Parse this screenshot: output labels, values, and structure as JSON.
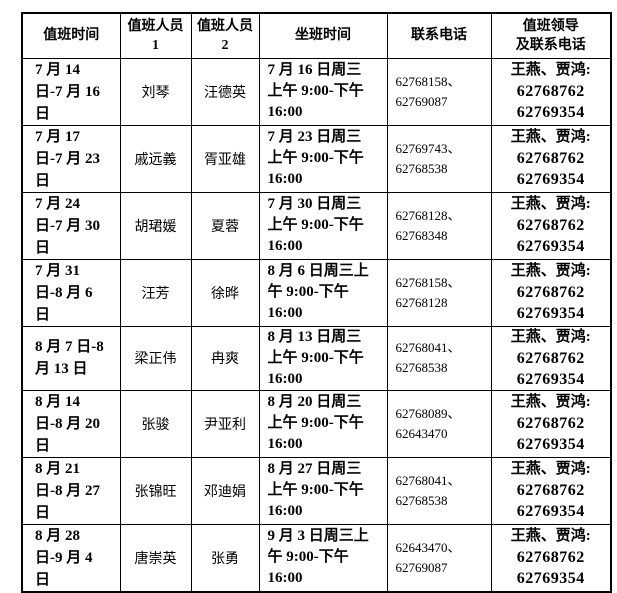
{
  "colors": {
    "text": "#000000",
    "border": "#000000",
    "background": "#ffffff"
  },
  "table": {
    "headers": {
      "duty_time": "值班时间",
      "person1_line1": "值班人员",
      "person1_line2": "1",
      "person2_line1": "值班人员",
      "person2_line2": "2",
      "sitting_time": "坐班时间",
      "contact_phone": "联系电话",
      "leader_line1": "值班领导",
      "leader_line2": "及联系电话"
    },
    "rows": [
      {
        "duty_time": "7 月 14 日-7 月 16 日",
        "person1": "刘琴",
        "person2": "汪德英",
        "sitting_time": "7 月 16 日周三上午 9:00-下午 16:00",
        "contact_phone": "62768158、62769087",
        "leader_names": "王燕、贾鸿:",
        "leader_phone1": "62768762",
        "leader_phone2": "62769354"
      },
      {
        "duty_time": "7 月 17 日-7 月 23 日",
        "person1": "戚远義",
        "person2": "胥亚雄",
        "sitting_time": "7 月 23 日周三上午 9:00-下午 16:00",
        "contact_phone": "62769743、62768538",
        "leader_names": "王燕、贾鸿:",
        "leader_phone1": "62768762",
        "leader_phone2": "62769354"
      },
      {
        "duty_time": "7 月 24 日-7 月 30 日",
        "person1": "胡珺媛",
        "person2": "夏蓉",
        "sitting_time": "7 月 30 日周三上午 9:00-下午 16:00",
        "contact_phone": "62768128、62768348",
        "leader_names": "王燕、贾鸿:",
        "leader_phone1": "62768762",
        "leader_phone2": "62769354"
      },
      {
        "duty_time": "7 月 31 日-8 月 6 日",
        "person1": "汪芳",
        "person2": "徐晔",
        "sitting_time": "8 月 6 日周三上午 9:00-下午 16:00",
        "contact_phone": "62768158、62768128",
        "leader_names": "王燕、贾鸿:",
        "leader_phone1": "62768762",
        "leader_phone2": "62769354"
      },
      {
        "duty_time": "8 月 7 日-8 月 13 日",
        "person1": "梁正伟",
        "person2": "冉爽",
        "sitting_time": "8 月 13 日周三上午 9:00-下午 16:00",
        "contact_phone": "62768041、62768538",
        "leader_names": "王燕、贾鸿:",
        "leader_phone1": "62768762",
        "leader_phone2": "62769354"
      },
      {
        "duty_time": "8 月 14 日-8 月 20 日",
        "person1": "张骏",
        "person2": "尹亚利",
        "sitting_time": "8 月 20 日周三上午 9:00-下午 16:00",
        "contact_phone": "62768089、62643470",
        "leader_names": "王燕、贾鸿:",
        "leader_phone1": "62768762",
        "leader_phone2": "62769354"
      },
      {
        "duty_time": "8 月 21 日-8 月 27 日",
        "person1": "张锦旺",
        "person2": "邓迪娟",
        "sitting_time": "8 月 27 日周三上午 9:00-下午 16:00",
        "contact_phone": "62768041、62768538",
        "leader_names": "王燕、贾鸿:",
        "leader_phone1": "62768762",
        "leader_phone2": "62769354"
      },
      {
        "duty_time": "8 月 28 日-9 月 4 日",
        "person1": "唐崇英",
        "person2": "张勇",
        "sitting_time": "9 月 3 日周三上午 9:00-下午 16:00",
        "contact_phone": "62643470、62769087",
        "leader_names": "王燕、贾鸿:",
        "leader_phone1": "62768762",
        "leader_phone2": "62769354"
      }
    ]
  }
}
